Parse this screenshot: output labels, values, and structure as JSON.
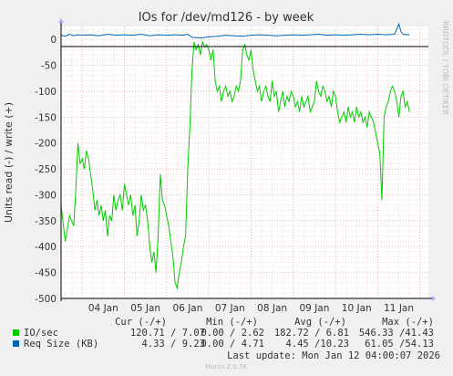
{
  "chart_data": {
    "type": "line",
    "title": "IOs for /dev/md126 - by week",
    "ylabel": "Units read (-) / write (+)",
    "side_label": "RRDTOOL / TOBI OETIKER",
    "ylim": [
      -500,
      25
    ],
    "yticks": [
      0,
      -50,
      -100,
      -150,
      -200,
      -250,
      -300,
      -350,
      -400,
      -450,
      -500
    ],
    "xlim": [
      3.5,
      12.2
    ],
    "xticks": [
      {
        "label": "04 Jan",
        "x": 4
      },
      {
        "label": "05 Jan",
        "x": 5
      },
      {
        "label": "06 Jan",
        "x": 6
      },
      {
        "label": "07 Jan",
        "x": 7
      },
      {
        "label": "08 Jan",
        "x": 8
      },
      {
        "label": "09 Jan",
        "x": 9
      },
      {
        "label": "10 Jan",
        "x": 10
      },
      {
        "label": "11 Jan",
        "x": 11
      }
    ],
    "grid": true,
    "series": [
      {
        "name": "IO/sec",
        "color": "#00cc00",
        "points": [
          [
            3.5,
            -320
          ],
          [
            3.6,
            -390
          ],
          [
            3.7,
            -340
          ],
          [
            3.8,
            -360
          ],
          [
            3.85,
            -290
          ],
          [
            3.9,
            -200
          ],
          [
            3.95,
            -240
          ],
          [
            4.0,
            -230
          ],
          [
            4.05,
            -250
          ],
          [
            4.1,
            -215
          ],
          [
            4.15,
            -230
          ],
          [
            4.2,
            -260
          ],
          [
            4.25,
            -290
          ],
          [
            4.3,
            -330
          ],
          [
            4.35,
            -310
          ],
          [
            4.4,
            -340
          ],
          [
            4.45,
            -320
          ],
          [
            4.5,
            -350
          ],
          [
            4.55,
            -330
          ],
          [
            4.6,
            -380
          ],
          [
            4.65,
            -340
          ],
          [
            4.7,
            -350
          ],
          [
            4.75,
            -300
          ],
          [
            4.8,
            -330
          ],
          [
            4.85,
            -310
          ],
          [
            4.9,
            -300
          ],
          [
            4.95,
            -330
          ],
          [
            5.0,
            -280
          ],
          [
            5.05,
            -300
          ],
          [
            5.1,
            -320
          ],
          [
            5.15,
            -300
          ],
          [
            5.2,
            -340
          ],
          [
            5.25,
            -320
          ],
          [
            5.3,
            -380
          ],
          [
            5.35,
            -350
          ],
          [
            5.4,
            -300
          ],
          [
            5.45,
            -330
          ],
          [
            5.5,
            -320
          ],
          [
            5.55,
            -350
          ],
          [
            5.6,
            -400
          ],
          [
            5.65,
            -430
          ],
          [
            5.7,
            -410
          ],
          [
            5.75,
            -450
          ],
          [
            5.8,
            -380
          ],
          [
            5.85,
            -260
          ],
          [
            5.9,
            -310
          ],
          [
            5.95,
            -320
          ],
          [
            6.0,
            -340
          ],
          [
            6.05,
            -360
          ],
          [
            6.1,
            -390
          ],
          [
            6.15,
            -420
          ],
          [
            6.2,
            -470
          ],
          [
            6.25,
            -480
          ],
          [
            6.3,
            -450
          ],
          [
            6.35,
            -430
          ],
          [
            6.4,
            -400
          ],
          [
            6.45,
            -380
          ],
          [
            6.5,
            -250
          ],
          [
            6.55,
            -170
          ],
          [
            6.6,
            -60
          ],
          [
            6.65,
            -5
          ],
          [
            6.7,
            -20
          ],
          [
            6.75,
            -10
          ],
          [
            6.8,
            -30
          ],
          [
            6.85,
            -5
          ],
          [
            6.9,
            -15
          ],
          [
            6.95,
            -10
          ],
          [
            7.0,
            -20
          ],
          [
            7.05,
            -40
          ],
          [
            7.1,
            -20
          ],
          [
            7.15,
            -80
          ],
          [
            7.2,
            -100
          ],
          [
            7.25,
            -90
          ],
          [
            7.3,
            -120
          ],
          [
            7.35,
            -100
          ],
          [
            7.4,
            -90
          ],
          [
            7.45,
            -110
          ],
          [
            7.5,
            -100
          ],
          [
            7.55,
            -120
          ],
          [
            7.6,
            -110
          ],
          [
            7.65,
            -90
          ],
          [
            7.7,
            -100
          ],
          [
            7.75,
            -80
          ],
          [
            7.8,
            -20
          ],
          [
            7.85,
            -10
          ],
          [
            7.9,
            -30
          ],
          [
            7.95,
            -40
          ],
          [
            8.0,
            -20
          ],
          [
            8.05,
            -60
          ],
          [
            8.1,
            -80
          ],
          [
            8.15,
            -100
          ],
          [
            8.2,
            -90
          ],
          [
            8.25,
            -120
          ],
          [
            8.3,
            -100
          ],
          [
            8.35,
            -90
          ],
          [
            8.4,
            -110
          ],
          [
            8.45,
            -120
          ],
          [
            8.5,
            -80
          ],
          [
            8.55,
            -110
          ],
          [
            8.6,
            -100
          ],
          [
            8.65,
            -140
          ],
          [
            8.7,
            -120
          ],
          [
            8.75,
            -100
          ],
          [
            8.8,
            -130
          ],
          [
            8.85,
            -110
          ],
          [
            8.9,
            -120
          ],
          [
            8.95,
            -100
          ],
          [
            9.0,
            -110
          ],
          [
            9.05,
            -130
          ],
          [
            9.1,
            -120
          ],
          [
            9.15,
            -140
          ],
          [
            9.2,
            -110
          ],
          [
            9.25,
            -130
          ],
          [
            9.3,
            -120
          ],
          [
            9.35,
            -110
          ],
          [
            9.4,
            -140
          ],
          [
            9.45,
            -130
          ],
          [
            9.5,
            -120
          ],
          [
            9.55,
            -80
          ],
          [
            9.6,
            -100
          ],
          [
            9.65,
            -110
          ],
          [
            9.7,
            -90
          ],
          [
            9.75,
            -100
          ],
          [
            9.8,
            -120
          ],
          [
            9.85,
            -110
          ],
          [
            9.9,
            -130
          ],
          [
            9.95,
            -100
          ],
          [
            10.0,
            -110
          ],
          [
            10.05,
            -140
          ],
          [
            10.1,
            -160
          ],
          [
            10.15,
            -150
          ],
          [
            10.2,
            -140
          ],
          [
            10.25,
            -160
          ],
          [
            10.3,
            -130
          ],
          [
            10.35,
            -150
          ],
          [
            10.4,
            -140
          ],
          [
            10.45,
            -160
          ],
          [
            10.5,
            -130
          ],
          [
            10.55,
            -150
          ],
          [
            10.6,
            -140
          ],
          [
            10.65,
            -160
          ],
          [
            10.7,
            -150
          ],
          [
            10.75,
            -170
          ],
          [
            10.8,
            -140
          ],
          [
            10.85,
            -150
          ],
          [
            10.9,
            -160
          ],
          [
            10.95,
            -180
          ],
          [
            11.0,
            -200
          ],
          [
            11.05,
            -220
          ],
          [
            11.1,
            -310
          ],
          [
            11.15,
            -150
          ],
          [
            11.2,
            -130
          ],
          [
            11.25,
            -120
          ],
          [
            11.3,
            -100
          ],
          [
            11.35,
            -90
          ],
          [
            11.4,
            -100
          ],
          [
            11.45,
            -120
          ],
          [
            11.5,
            -150
          ],
          [
            11.55,
            -110
          ],
          [
            11.6,
            -100
          ],
          [
            11.65,
            -130
          ],
          [
            11.7,
            -120
          ],
          [
            11.75,
            -140
          ]
        ]
      },
      {
        "name": "Req Size (KB)",
        "color": "#0066b3",
        "points": [
          [
            3.5,
            8
          ],
          [
            3.6,
            6
          ],
          [
            3.7,
            10
          ],
          [
            3.8,
            7
          ],
          [
            3.9,
            9
          ],
          [
            4.0,
            8
          ],
          [
            4.2,
            9
          ],
          [
            4.4,
            7
          ],
          [
            4.6,
            10
          ],
          [
            4.8,
            8
          ],
          [
            5.0,
            9
          ],
          [
            5.2,
            8
          ],
          [
            5.4,
            10
          ],
          [
            5.6,
            7
          ],
          [
            5.8,
            9
          ],
          [
            6.0,
            8
          ],
          [
            6.2,
            9
          ],
          [
            6.4,
            8
          ],
          [
            6.5,
            10
          ],
          [
            6.6,
            4
          ],
          [
            6.8,
            3
          ],
          [
            7.0,
            5
          ],
          [
            7.2,
            6
          ],
          [
            7.4,
            8
          ],
          [
            7.6,
            7
          ],
          [
            7.8,
            6
          ],
          [
            8.0,
            8
          ],
          [
            8.2,
            9
          ],
          [
            8.4,
            8
          ],
          [
            8.6,
            7
          ],
          [
            8.8,
            8
          ],
          [
            9.0,
            9
          ],
          [
            9.2,
            8
          ],
          [
            9.4,
            9
          ],
          [
            9.6,
            10
          ],
          [
            9.8,
            8
          ],
          [
            10.0,
            9
          ],
          [
            10.2,
            8
          ],
          [
            10.4,
            9
          ],
          [
            10.6,
            10
          ],
          [
            10.8,
            9
          ],
          [
            11.0,
            10
          ],
          [
            11.2,
            9
          ],
          [
            11.4,
            10
          ],
          [
            11.5,
            30
          ],
          [
            11.55,
            15
          ],
          [
            11.6,
            10
          ],
          [
            11.75,
            9
          ]
        ]
      }
    ],
    "legend": {
      "headers": [
        "Cur (-/+)",
        "Min (-/+)",
        "Avg (-/+)",
        "Max (-/+)"
      ],
      "rows": [
        {
          "name": "IO/sec",
          "color": "#00cc00",
          "cur": "120.71 / 7.07",
          "min": "0.00 / 2.62",
          "avg": "182.72 / 6.81",
          "max": "546.33 /41.43"
        },
        {
          "name": "Req Size (KB)",
          "color": "#0066b3",
          "cur": "4.33 / 9.23",
          "min": "0.00 / 4.71",
          "avg": "4.45 /10.23",
          "max": "61.05 /54.13"
        }
      ]
    },
    "last_update": "Last update: Mon Jan 12 04:00:07 2026",
    "footer": "Munin 2.0.76"
  }
}
